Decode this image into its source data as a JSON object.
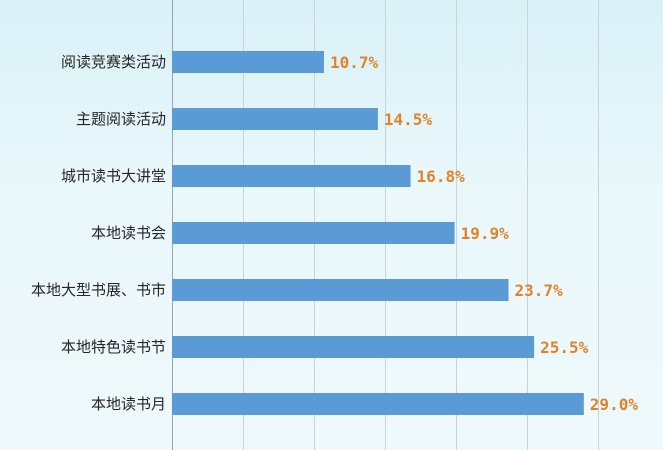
{
  "chart_data": {
    "type": "bar",
    "orientation": "horizontal",
    "categories": [
      "阅读竞赛类活动",
      "主题阅读活动",
      "城市读书大讲堂",
      "本地读书会",
      "本地大型书展、书市",
      "本地特色读书节",
      "本地读书月"
    ],
    "values": [
      10.7,
      14.5,
      16.8,
      19.9,
      23.7,
      25.5,
      29.0
    ],
    "value_labels": [
      "10.7%",
      "14.5%",
      "16.8%",
      "19.9%",
      "23.7%",
      "25.5%",
      "29.0%"
    ],
    "xlim": [
      0,
      30
    ],
    "grid": true,
    "bar_color": "#5b9bd5",
    "label_color": "#e2832a"
  }
}
